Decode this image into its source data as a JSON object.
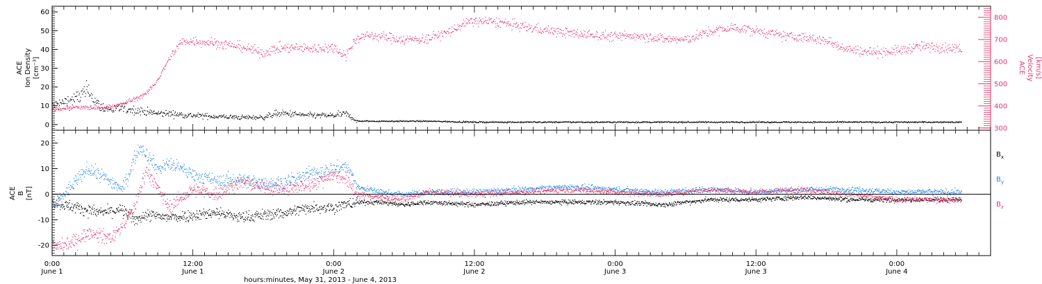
{
  "colors": {
    "black": "#000000",
    "pink": "#e8336a",
    "blue": "#1f86e6",
    "frame": "#000000",
    "background": "#ffffff"
  },
  "x_axis": {
    "tick_times": [
      "0:00",
      "12:00",
      "0:00",
      "12:00",
      "0:00",
      "12:00",
      "0:00"
    ],
    "tick_dates": [
      "June 1",
      "June 1",
      "June 2",
      "June 2",
      "June 3",
      "June 3",
      "June 4"
    ],
    "xlabel": "hours:minutes, May 31, 2013 - June  4, 2013"
  },
  "chart_data": [
    {
      "type": "scatter",
      "panel": "top",
      "ylabel_left": [
        "ACE",
        "Ion Density",
        "[cm⁻³]"
      ],
      "ylabel_right": [
        "ACE",
        "Velocity",
        "[km/s]"
      ],
      "x_range_hours": [
        0,
        80
      ],
      "ylim_left": [
        -3,
        63
      ],
      "yticks_left": [
        "0",
        "10",
        "20",
        "30",
        "40",
        "50",
        "60"
      ],
      "ylim_right": [
        290,
        850
      ],
      "yticks_right": [
        "300",
        "400",
        "500",
        "600",
        "700",
        "800"
      ],
      "series": [
        {
          "axis": "left",
          "color": "black",
          "x": [
            0,
            1,
            2,
            3,
            4,
            5,
            6,
            7,
            8,
            9,
            10,
            11,
            12,
            14,
            16,
            18,
            19,
            20,
            22,
            24,
            25,
            25.5,
            26,
            28,
            32,
            36,
            40,
            44,
            48,
            52,
            56,
            60,
            64,
            68,
            72,
            76,
            77.5
          ],
          "y": [
            10,
            12,
            14,
            18,
            10,
            8,
            9,
            8,
            7,
            6,
            6,
            5.5,
            5,
            4.5,
            4,
            4,
            6,
            6,
            5,
            5,
            6,
            4,
            2,
            2,
            2,
            1.5,
            1.5,
            1.5,
            1.5,
            1.5,
            1.5,
            1.5,
            1.5,
            1.5,
            1.5,
            1.5,
            1.5
          ]
        },
        {
          "axis": "right",
          "color": "pink",
          "x": [
            0,
            2,
            4,
            6,
            8,
            9,
            10,
            11,
            12,
            14,
            16,
            18,
            19,
            20,
            22,
            24,
            25,
            26,
            27,
            28,
            30,
            32,
            34,
            35,
            36,
            38,
            40,
            42,
            44,
            48,
            50,
            52,
            54,
            56,
            58,
            60,
            62,
            64,
            66,
            68,
            70,
            72,
            74,
            76,
            77.5
          ],
          "y": [
            385,
            395,
            390,
            410,
            455,
            520,
            620,
            690,
            695,
            685,
            670,
            640,
            660,
            665,
            660,
            665,
            630,
            710,
            720,
            715,
            700,
            705,
            740,
            770,
            785,
            780,
            760,
            745,
            730,
            715,
            720,
            705,
            700,
            735,
            755,
            740,
            720,
            710,
            695,
            655,
            645,
            650,
            670,
            665,
            660
          ]
        }
      ]
    },
    {
      "type": "scatter",
      "panel": "bottom",
      "ylabel_left": [
        "ACE",
        "B",
        "[nT]"
      ],
      "x_range_hours": [
        0,
        80
      ],
      "ylim": [
        -24,
        25
      ],
      "yticks": [
        "-20",
        "-10",
        "0",
        "10",
        "20"
      ],
      "zero_line": true,
      "series": [
        {
          "name": "B",
          "subscript": "x",
          "color": "black",
          "x": [
            0,
            2,
            4,
            6,
            7,
            8,
            10,
            12,
            14,
            16,
            18,
            20,
            22,
            24,
            25,
            26,
            28,
            30,
            32,
            36,
            40,
            44,
            48,
            52,
            56,
            60,
            64,
            68,
            72,
            76,
            77.5
          ],
          "y": [
            -3,
            -5,
            -7,
            -6,
            -10,
            -8,
            -9,
            -8,
            -7,
            -9,
            -8,
            -7,
            -5,
            -5,
            -4,
            -3,
            -3,
            -4,
            -3,
            -4,
            -3,
            -3,
            -3,
            -4,
            -2,
            -2,
            -1,
            -2,
            -2,
            -2,
            -2
          ]
        },
        {
          "name": "B",
          "subscript": "y",
          "color": "blue",
          "x": [
            0,
            1,
            2,
            3,
            4,
            5,
            6,
            7,
            7.5,
            8,
            9,
            10,
            12,
            14,
            16,
            18,
            20,
            22,
            24,
            25,
            25.5,
            26,
            28,
            30,
            32,
            36,
            40,
            44,
            48,
            52,
            56,
            60,
            64,
            68,
            72,
            76,
            77.5
          ],
          "y": [
            -5,
            0,
            5,
            10,
            8,
            5,
            2,
            14,
            19,
            16,
            10,
            12,
            8,
            5,
            6,
            4,
            5,
            8,
            10,
            11,
            8,
            3,
            1,
            0,
            1,
            1,
            2,
            3,
            2,
            1,
            2,
            1,
            2,
            2,
            1,
            1,
            1
          ]
        },
        {
          "name": "B",
          "subscript": "z",
          "color": "pink",
          "x": [
            0,
            1,
            2,
            3,
            4,
            5,
            6,
            7,
            8,
            9,
            10,
            12,
            14,
            16,
            18,
            20,
            22,
            24,
            25,
            26,
            28,
            30,
            32,
            36,
            40,
            44,
            48,
            52,
            56,
            60,
            64,
            68,
            72,
            76,
            77.5
          ],
          "y": [
            -20,
            -20,
            -18,
            -15,
            -16,
            -17,
            -12,
            -5,
            10,
            2,
            -5,
            2,
            0,
            5,
            3,
            2,
            4,
            8,
            6,
            0,
            -1,
            -2,
            1,
            0,
            1,
            2,
            1,
            0,
            2,
            1,
            2,
            0,
            -2,
            -2,
            -2
          ]
        }
      ]
    }
  ]
}
